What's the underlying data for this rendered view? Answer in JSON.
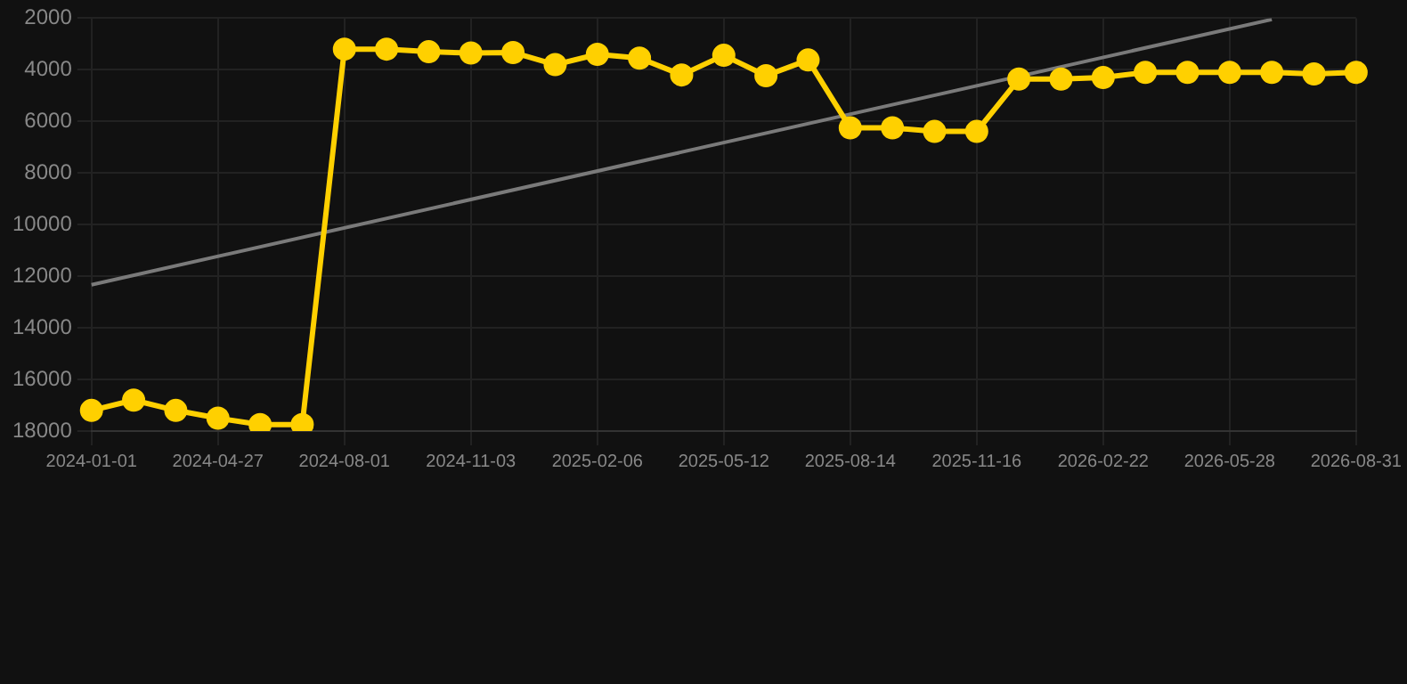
{
  "chart_data": {
    "type": "line",
    "categories": [
      "2024-01-01",
      null,
      null,
      "2024-04-27",
      null,
      null,
      "2024-08-01",
      null,
      null,
      "2024-11-03",
      null,
      null,
      "2025-02-06",
      null,
      null,
      "2025-05-12",
      null,
      null,
      "2025-08-14",
      null,
      null,
      "2025-11-16",
      null,
      null,
      "2026-02-22",
      null,
      null,
      "2026-05-28",
      null,
      null,
      "2026-08-31"
    ],
    "series": [
      {
        "color": "#ffd000",
        "values": [
          17200,
          16800,
          17200,
          17500,
          17750,
          17750,
          3200,
          3200,
          3300,
          3350,
          3330,
          3800,
          3400,
          3550,
          4200,
          3440,
          4230,
          3620,
          6250,
          6250,
          6390,
          6390,
          4360,
          4360,
          4300,
          4100,
          4100,
          4100,
          4100,
          4160,
          4100
        ],
        "marker": "circle"
      },
      {
        "type": "line",
        "color": "#7a7a7a",
        "marker": "none",
        "values": [
          12330,
          null,
          null,
          null,
          null,
          null,
          null,
          null,
          null,
          null,
          null,
          null,
          null,
          null,
          null,
          null,
          null,
          null,
          null,
          null,
          null,
          null,
          null,
          null,
          null,
          null,
          null,
          null,
          2050,
          null,
          null
        ]
      }
    ],
    "ylim": [
      18000,
      2000
    ],
    "yticks": [
      2000,
      4000,
      6000,
      8000,
      10000,
      12000,
      14000,
      16000,
      18000
    ],
    "grid": true,
    "legend": false
  }
}
